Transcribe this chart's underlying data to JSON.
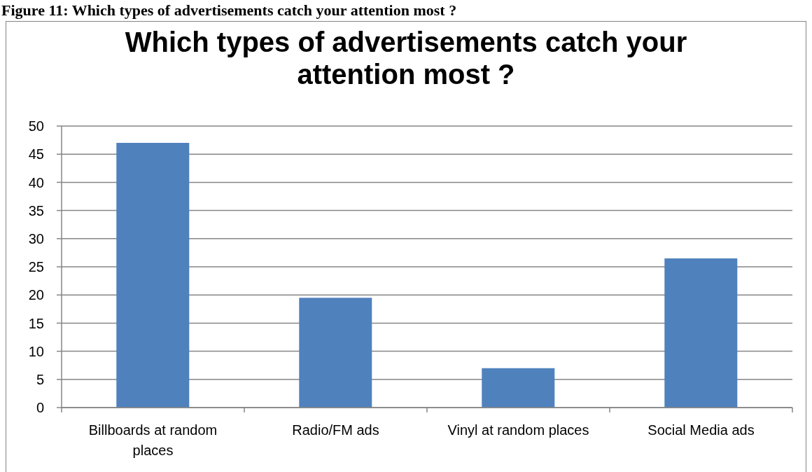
{
  "chart_data": {
    "type": "bar",
    "title": "Which types of advertisements catch your attention most ?",
    "annotations": [
      "Figure 11: Which types of advertisements catch your attention most ?"
    ],
    "categories": [
      "Billboards at random places",
      "Radio/FM ads",
      "Vinyl at random places",
      "Social Media ads"
    ],
    "values": [
      47,
      19.5,
      7,
      26.5
    ],
    "color": "#4f81bd",
    "ylim": [
      0,
      50
    ],
    "yticks": [
      0,
      5,
      10,
      15,
      20,
      25,
      30,
      35,
      40,
      45,
      50
    ],
    "grid": "y"
  }
}
